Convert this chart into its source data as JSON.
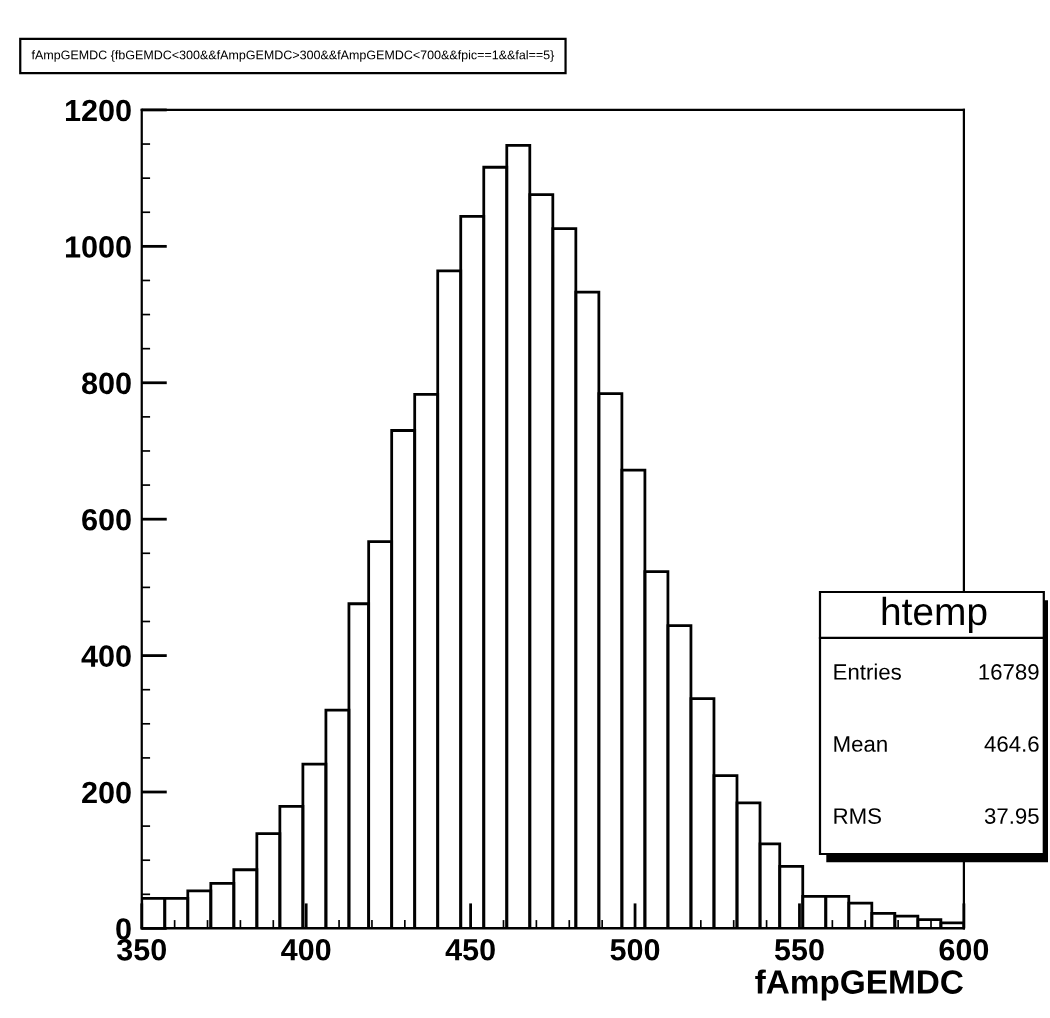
{
  "chart_data": {
    "type": "histogram",
    "title": "fAmpGEMDC {fbGEMDC<300&&fAmpGEMDC>300&&fAmpGEMDC<700&&fpic==1&&fal==5}",
    "xlabel": "fAmpGEMDC",
    "bins": [
      350,
      357,
      364,
      371,
      378,
      385,
      392,
      399,
      406,
      413,
      419,
      426,
      433,
      440,
      447,
      454,
      461,
      468,
      475,
      482,
      489,
      496,
      503,
      510,
      517,
      524,
      531,
      538,
      544,
      551,
      558,
      565,
      572,
      579,
      586,
      593,
      600
    ],
    "values": [
      44,
      44,
      55,
      66,
      86,
      139,
      179,
      241,
      320,
      476,
      567,
      730,
      783,
      964,
      1044,
      1116,
      1148,
      1076,
      1026,
      933,
      784,
      672,
      523,
      444,
      337,
      224,
      184,
      124,
      91,
      47,
      47,
      37,
      22,
      18,
      13,
      8
    ],
    "color": "#000000",
    "xlim": [
      350,
      600
    ],
    "ylim": [
      0,
      1200
    ],
    "xticks": [
      350,
      400,
      450,
      500,
      550,
      600
    ],
    "yticks": [
      0,
      200,
      400,
      600,
      800,
      1000,
      1200
    ],
    "grid": false,
    "legend": false,
    "annotations": [
      "htemp",
      "Entries",
      "16789",
      "Mean",
      "464.6",
      "RMS",
      "37.95"
    ]
  }
}
